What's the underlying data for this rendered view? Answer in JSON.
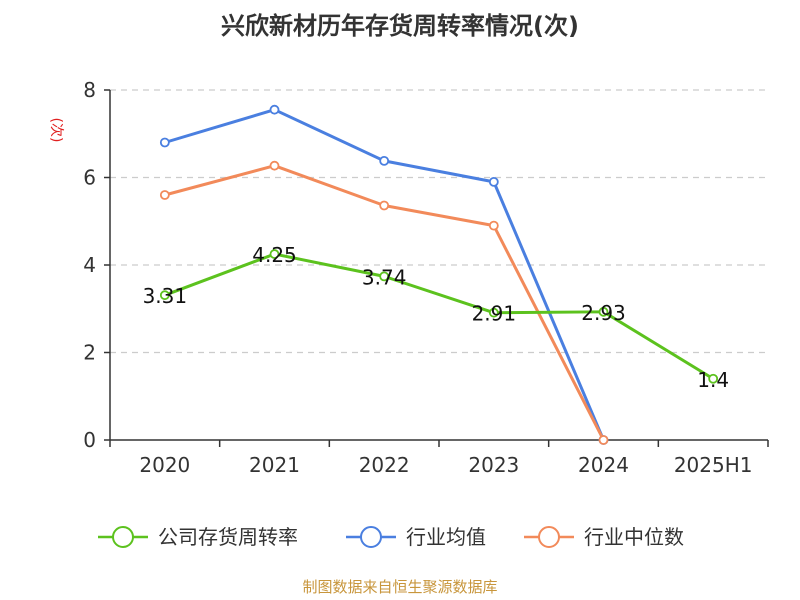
{
  "chart_data": {
    "type": "line",
    "title": "兴欣新材历年存货周转率情况(次)",
    "ylabel": "(次)",
    "categories": [
      "2020",
      "2021",
      "2022",
      "2023",
      "2024",
      "2025H1"
    ],
    "ylim": [
      0,
      8
    ],
    "yticks": [
      "0",
      "2",
      "4",
      "6",
      "8"
    ],
    "grid": true,
    "legend_position": "bottom",
    "series": [
      {
        "name": "公司存货周转率",
        "color": "#5cc21e",
        "values": [
          3.31,
          4.25,
          3.74,
          2.91,
          2.93,
          1.4
        ],
        "labels": [
          "3.31",
          "4.25",
          "3.74",
          "2.91",
          "2.93",
          "1.4"
        ]
      },
      {
        "name": "行业均值",
        "color": "#4a7fe0",
        "values": [
          6.8,
          7.55,
          6.38,
          5.9,
          0,
          null
        ]
      },
      {
        "name": "行业中位数",
        "color": "#f28a5a",
        "values": [
          5.6,
          6.27,
          5.36,
          4.9,
          0,
          null
        ]
      }
    ],
    "source": "制图数据来自恒生聚源数据库"
  }
}
